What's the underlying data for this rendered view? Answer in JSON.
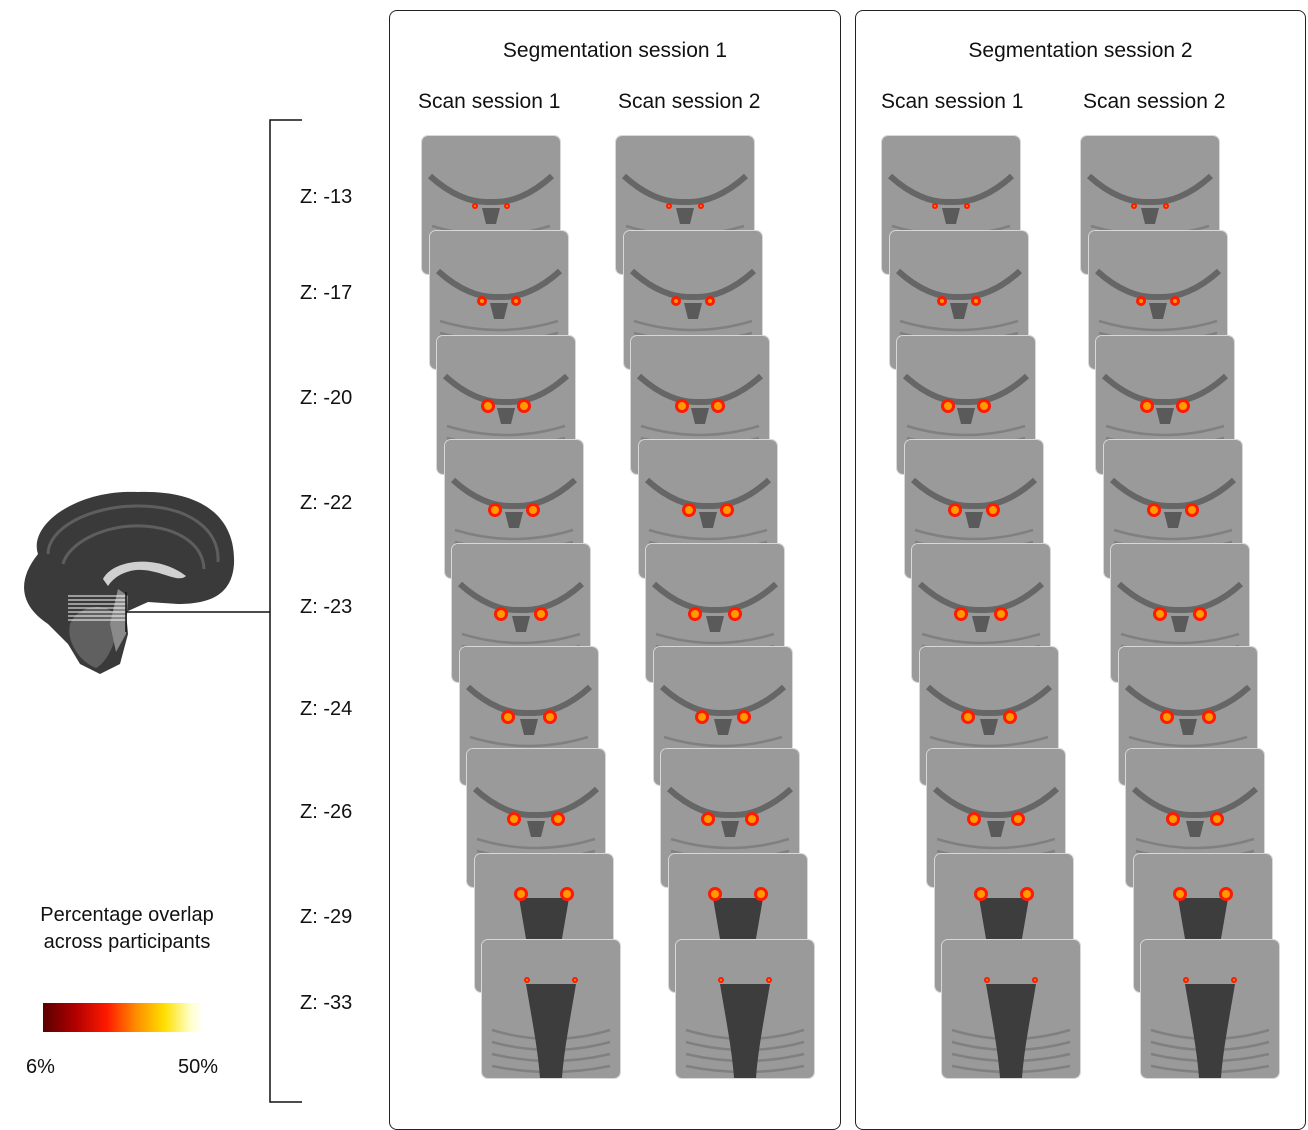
{
  "panels": [
    {
      "title": "Segmentation session 1",
      "columns": [
        "Scan session 1",
        "Scan session 2"
      ]
    },
    {
      "title": "Segmentation session 2",
      "columns": [
        "Scan session 1",
        "Scan session 2"
      ]
    }
  ],
  "slices": [
    "Z: -13",
    "Z: -17",
    "Z: -20",
    "Z: -22",
    "Z: -23",
    "Z: -24",
    "Z: -26",
    "Z: -29",
    "Z: -33"
  ],
  "legend": {
    "title_line1": "Percentage overlap",
    "title_line2": "across participants",
    "min_label": "6%",
    "max_label": "50%",
    "colors": [
      "#5a0000",
      "#b00000",
      "#ff1a00",
      "#ff8c00",
      "#ffe000",
      "#ffffff"
    ]
  }
}
